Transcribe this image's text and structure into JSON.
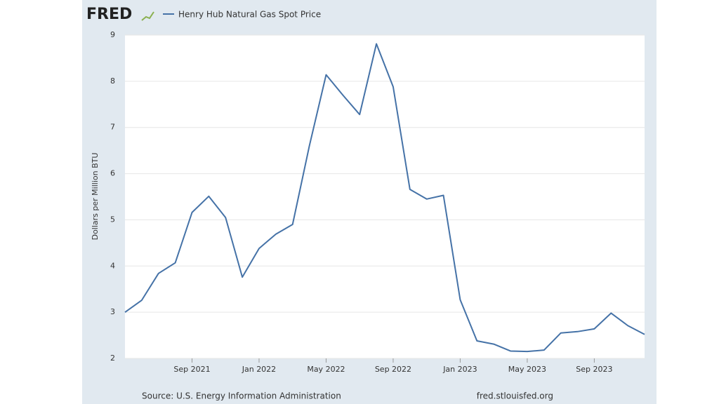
{
  "logo": "FRED",
  "chart_data": {
    "type": "line",
    "legend_entry": "Henry Hub Natural Gas Spot Price",
    "y_label": "Dollars per Million BTU",
    "source": "Source: U.S. Energy Information Administration",
    "site": "fred.stlouisfed.org",
    "x": [
      "2021-05",
      "2021-06",
      "2021-07",
      "2021-08",
      "2021-09",
      "2021-10",
      "2021-11",
      "2021-12",
      "2022-01",
      "2022-02",
      "2022-03",
      "2022-04",
      "2022-05",
      "2022-06",
      "2022-07",
      "2022-08",
      "2022-09",
      "2022-10",
      "2022-11",
      "2022-12",
      "2023-01",
      "2023-02",
      "2023-03",
      "2023-04",
      "2023-05",
      "2023-06",
      "2023-07",
      "2023-08",
      "2023-09",
      "2023-10",
      "2023-11",
      "2023-12"
    ],
    "series": [
      {
        "name": "Henry Hub Natural Gas Spot Price",
        "color": "#4572a7",
        "values": [
          3.0,
          3.26,
          3.84,
          4.07,
          5.16,
          5.51,
          5.05,
          3.76,
          4.38,
          4.69,
          4.9,
          6.6,
          8.14,
          7.7,
          7.28,
          8.81,
          7.88,
          5.66,
          5.45,
          5.53,
          3.27,
          2.38,
          2.31,
          2.16,
          2.15,
          2.18,
          2.55,
          2.58,
          2.64,
          2.98,
          2.71,
          2.52
        ]
      }
    ],
    "xlim": [
      "2021-05",
      "2023-12"
    ],
    "xticks": [
      {
        "value": "2021-09",
        "label": "Sep 2021"
      },
      {
        "value": "2022-01",
        "label": "Jan 2022"
      },
      {
        "value": "2022-05",
        "label": "May 2022"
      },
      {
        "value": "2022-09",
        "label": "Sep 2022"
      },
      {
        "value": "2023-01",
        "label": "Jan 2023"
      },
      {
        "value": "2023-05",
        "label": "May 2023"
      },
      {
        "value": "2023-09",
        "label": "Sep 2023"
      }
    ],
    "ylim": [
      2,
      9
    ],
    "yticks": [
      2,
      3,
      4,
      5,
      6,
      7,
      8,
      9
    ],
    "grid": true
  }
}
